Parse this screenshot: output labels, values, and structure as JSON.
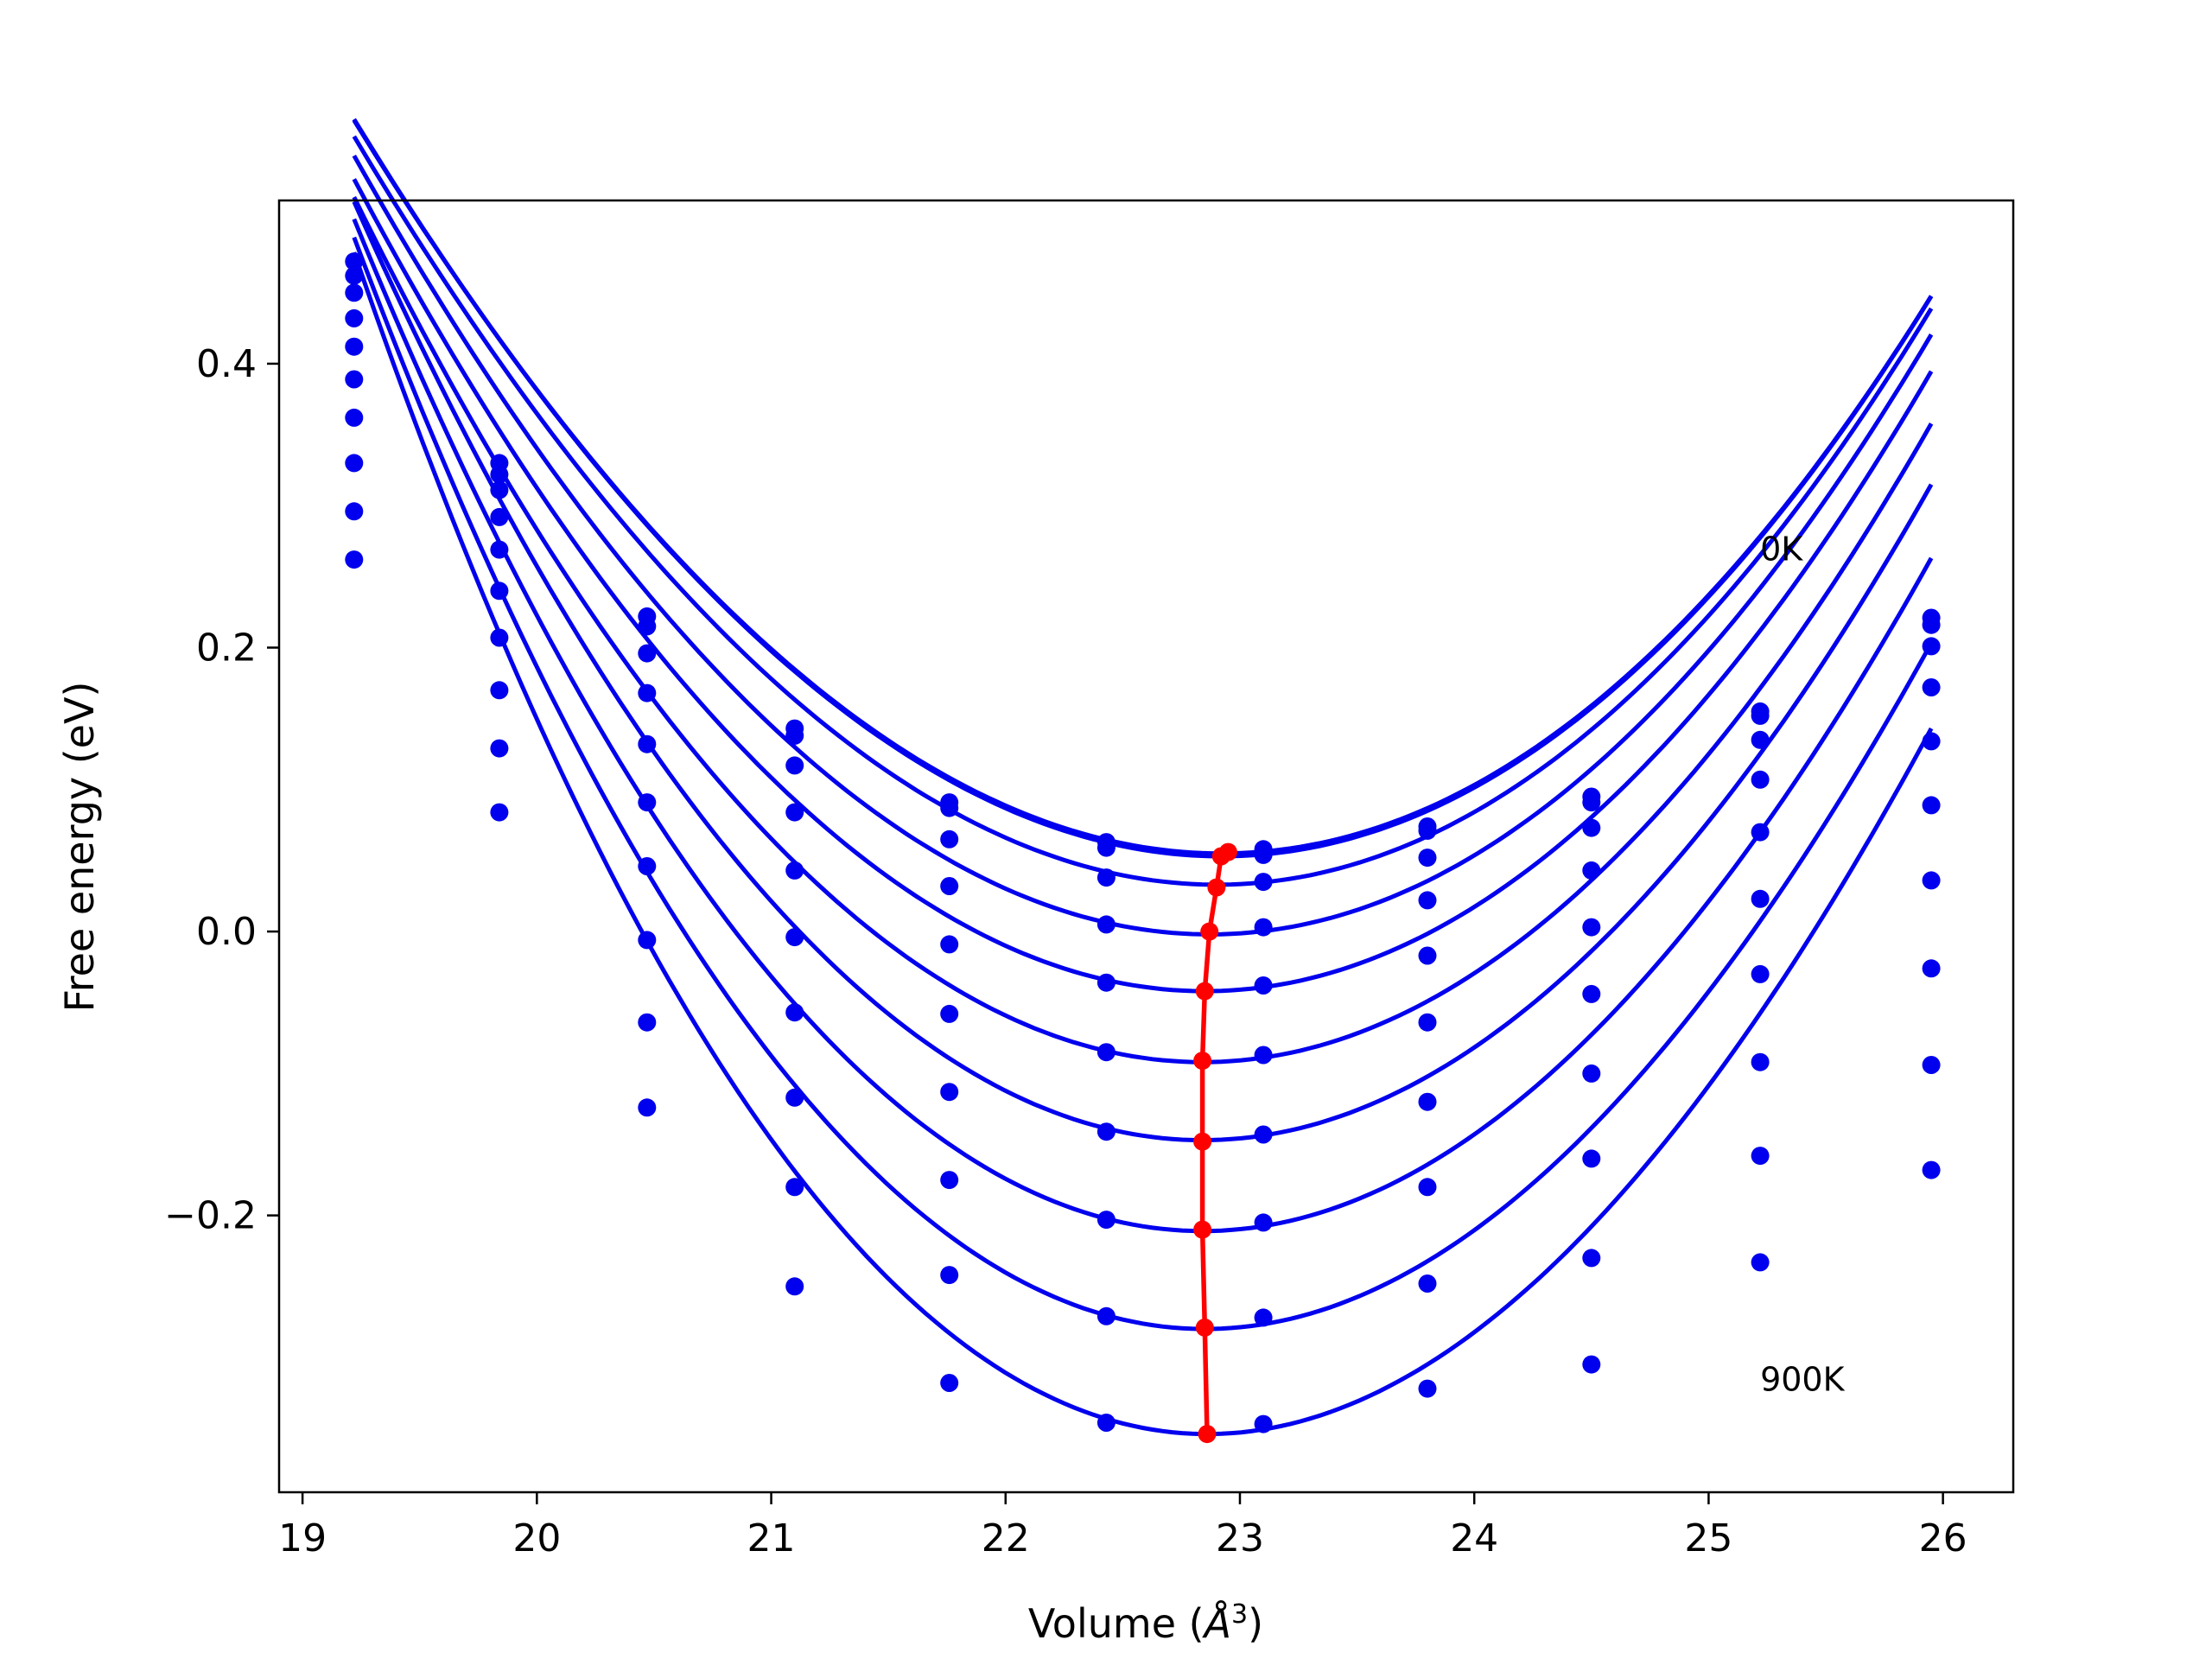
{
  "chart_data": {
    "type": "line",
    "title": "",
    "xlabel": "Volume (",
    "xlabel_unit": "Å",
    "xlabel_sup": "3",
    "xlabel_close": ")",
    "ylabel": "Free energy (eV)",
    "xlim": [
      18.9,
      26.3
    ],
    "ylim": [
      -0.395,
      0.515
    ],
    "grid": false,
    "legend": "none",
    "x_ticks": [
      19,
      20,
      21,
      22,
      23,
      24,
      25,
      26
    ],
    "x_tick_labels": [
      "19",
      "20",
      "21",
      "22",
      "23",
      "24",
      "25",
      "26"
    ],
    "y_ticks": [
      -0.2,
      0.0,
      0.2,
      0.4
    ],
    "y_tick_labels": [
      "−0.2",
      "0.0",
      "0.2",
      "0.4"
    ],
    "annotations": [
      {
        "text": "0K",
        "x": 25.22,
        "y": 0.27
      },
      {
        "text": "900K",
        "x": 25.22,
        "y": -0.315
      }
    ],
    "colors": {
      "curves": "#0000ee",
      "minimum_path": "#ff0000"
    },
    "volumes": [
      19.22,
      19.84,
      20.47,
      21.1,
      21.76,
      22.43,
      23.1,
      23.8,
      24.5,
      25.22,
      25.95
    ],
    "series": [
      {
        "fit": [
          0.055,
          22.92,
          0.0405,
          0.00075
        ],
        "values": [
          0.472,
          0.33,
          0.222,
          0.143,
          0.091,
          0.063,
          0.058,
          0.074,
          0.095,
          0.155,
          0.221
        ]
      },
      {
        "fit": [
          0.053,
          22.92,
          0.0407,
          0.00075
        ],
        "values": [
          0.462,
          0.322,
          0.215,
          0.138,
          0.087,
          0.059,
          0.054,
          0.071,
          0.091,
          0.152,
          0.216
        ]
      },
      {
        "fit": [
          0.033,
          22.9,
          0.0415,
          0.0007
        ],
        "values": [
          0.45,
          0.311,
          0.196,
          0.117,
          0.065,
          0.038,
          0.035,
          0.052,
          0.073,
          0.135,
          0.201
        ]
      },
      {
        "fit": [
          -0.002,
          22.87,
          0.043,
          0.0005
        ],
        "values": [
          0.432,
          0.292,
          0.168,
          0.084,
          0.032,
          0.005,
          0.003,
          0.022,
          0.043,
          0.107,
          0.172
        ]
      },
      {
        "fit": [
          -0.042,
          22.85,
          0.0445,
          0.0003
        ],
        "values": [
          0.412,
          0.269,
          0.132,
          0.043,
          -0.009,
          -0.036,
          -0.038,
          -0.017,
          0.003,
          0.07,
          0.134
        ]
      },
      {
        "fit": [
          -0.092,
          22.84,
          0.0465,
          0.0
        ],
        "values": [
          0.389,
          0.24,
          0.091,
          -0.004,
          -0.058,
          -0.085,
          -0.087,
          -0.064,
          -0.044,
          0.023,
          0.089
        ]
      },
      {
        "fit": [
          -0.147,
          22.84,
          0.049,
          -0.0004
        ],
        "values": [
          0.362,
          0.207,
          0.046,
          -0.057,
          -0.113,
          -0.141,
          -0.143,
          -0.12,
          -0.1,
          -0.03,
          0.036
        ]
      },
      {
        "fit": [
          -0.211,
          22.84,
          0.0515,
          -0.0008
        ],
        "values": [
          0.33,
          0.17,
          -0.006,
          -0.117,
          -0.175,
          -0.203,
          -0.205,
          -0.18,
          -0.16,
          -0.092,
          -0.026
        ]
      },
      {
        "fit": [
          -0.28,
          22.85,
          0.054,
          -0.0012
        ],
        "values": [
          0.296,
          0.129,
          -0.064,
          -0.18,
          -0.242,
          -0.271,
          -0.272,
          -0.248,
          -0.23,
          -0.158,
          -0.094
        ]
      },
      {
        "fit": [
          -0.354,
          22.86,
          0.057,
          -0.0016
        ],
        "values": [
          0.262,
          0.084,
          -0.124,
          -0.25,
          -0.318,
          -0.346,
          -0.347,
          -0.322,
          -0.305,
          -0.233,
          -0.168
        ]
      }
    ],
    "minimum_path": {
      "x": [
        22.95,
        22.92,
        22.9,
        22.87,
        22.85,
        22.84,
        22.84,
        22.84,
        22.85,
        22.86
      ],
      "y": [
        0.056,
        0.053,
        0.031,
        0.0,
        -0.042,
        -0.091,
        -0.148,
        -0.21,
        -0.279,
        -0.354
      ]
    }
  }
}
